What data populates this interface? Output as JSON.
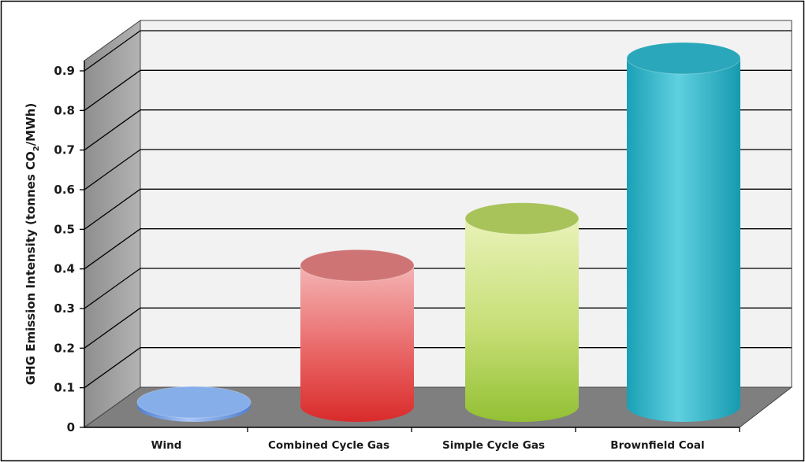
{
  "chart_data": {
    "type": "bar",
    "style": "3d-cylinder",
    "categories": [
      "Wind",
      "Combined Cycle Gas",
      "Simple Cycle Gas",
      "Brownfield Coal"
    ],
    "values": [
      0.01,
      0.36,
      0.48,
      0.89
    ],
    "ylabel_main": "GHG Emission Intensity (tonnes CO",
    "ylabel_sub": "2",
    "ylabel_tail": "/MWh)",
    "ylim": [
      0,
      0.9
    ],
    "yticks": [
      "0",
      "0.1",
      "0.2",
      "0.3",
      "0.4",
      "0.5",
      "0.6",
      "0.7",
      "0.8",
      "0.9"
    ],
    "grid": true,
    "colors": {
      "Wind": "#7aa3e8",
      "Combined Cycle Gas": "#e85f5f",
      "Simple Cycle Gas": "#b8d55f",
      "Brownfield Coal": "#3bb6c9",
      "back_wall": "#f2f2f2",
      "side_wall": "#a6a6a6",
      "floor": "#7f7f7f"
    }
  }
}
